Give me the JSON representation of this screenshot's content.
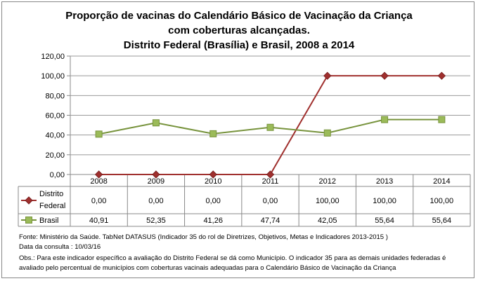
{
  "chart_data": {
    "type": "line",
    "title": [
      "Proporção de vacinas do Calendário Básico de Vacinação da Criança",
      "com coberturas alcançadas.",
      "Distrito Federal (Brasília) e Brasil, 2008 a 2014"
    ],
    "categories": [
      "2008",
      "2009",
      "2010",
      "2011",
      "2012",
      "2013",
      "2014"
    ],
    "ylim": [
      0,
      120
    ],
    "yticks": [
      "0,00",
      "20,00",
      "40,00",
      "60,00",
      "80,00",
      "100,00",
      "120,00"
    ],
    "series": [
      {
        "name": "Distrito Federal",
        "name_lines": [
          "Distrito",
          "Federal"
        ],
        "color": "#A0302E",
        "marker": "diamond",
        "values": [
          0,
          0,
          0,
          0,
          100,
          100,
          100
        ],
        "labels": [
          "0,00",
          "0,00",
          "0,00",
          "0,00",
          "100,00",
          "100,00",
          "100,00"
        ]
      },
      {
        "name": "Brasil",
        "name_lines": [
          "Brasil"
        ],
        "color": "#77933C",
        "marker": "square",
        "values": [
          40.91,
          52.35,
          41.26,
          47.74,
          42.05,
          55.64,
          55.64
        ],
        "labels": [
          "40,91",
          "52,35",
          "41,26",
          "47,74",
          "42,05",
          "55,64",
          "55,64"
        ]
      }
    ],
    "legend": "data-table"
  },
  "notes": {
    "source": "Fonte: Ministério da Saúde. TabNet DATASUS (Indicador 35 do rol de Diretrizes, Objetivos, Metas e Indicadores 2013-2015 )",
    "date": "Data da consulta : 10/03/16",
    "obs1": "Obs.: Para este indicador específico a avaliação do Distrito Federal se dá como Município. O indicador 35 para as demais unidades federadas é",
    "obs2": "avaliado pelo percentual de municípios com coberturas vacinais adequadas para o Calendário Básico de Vacinação da Criança"
  }
}
